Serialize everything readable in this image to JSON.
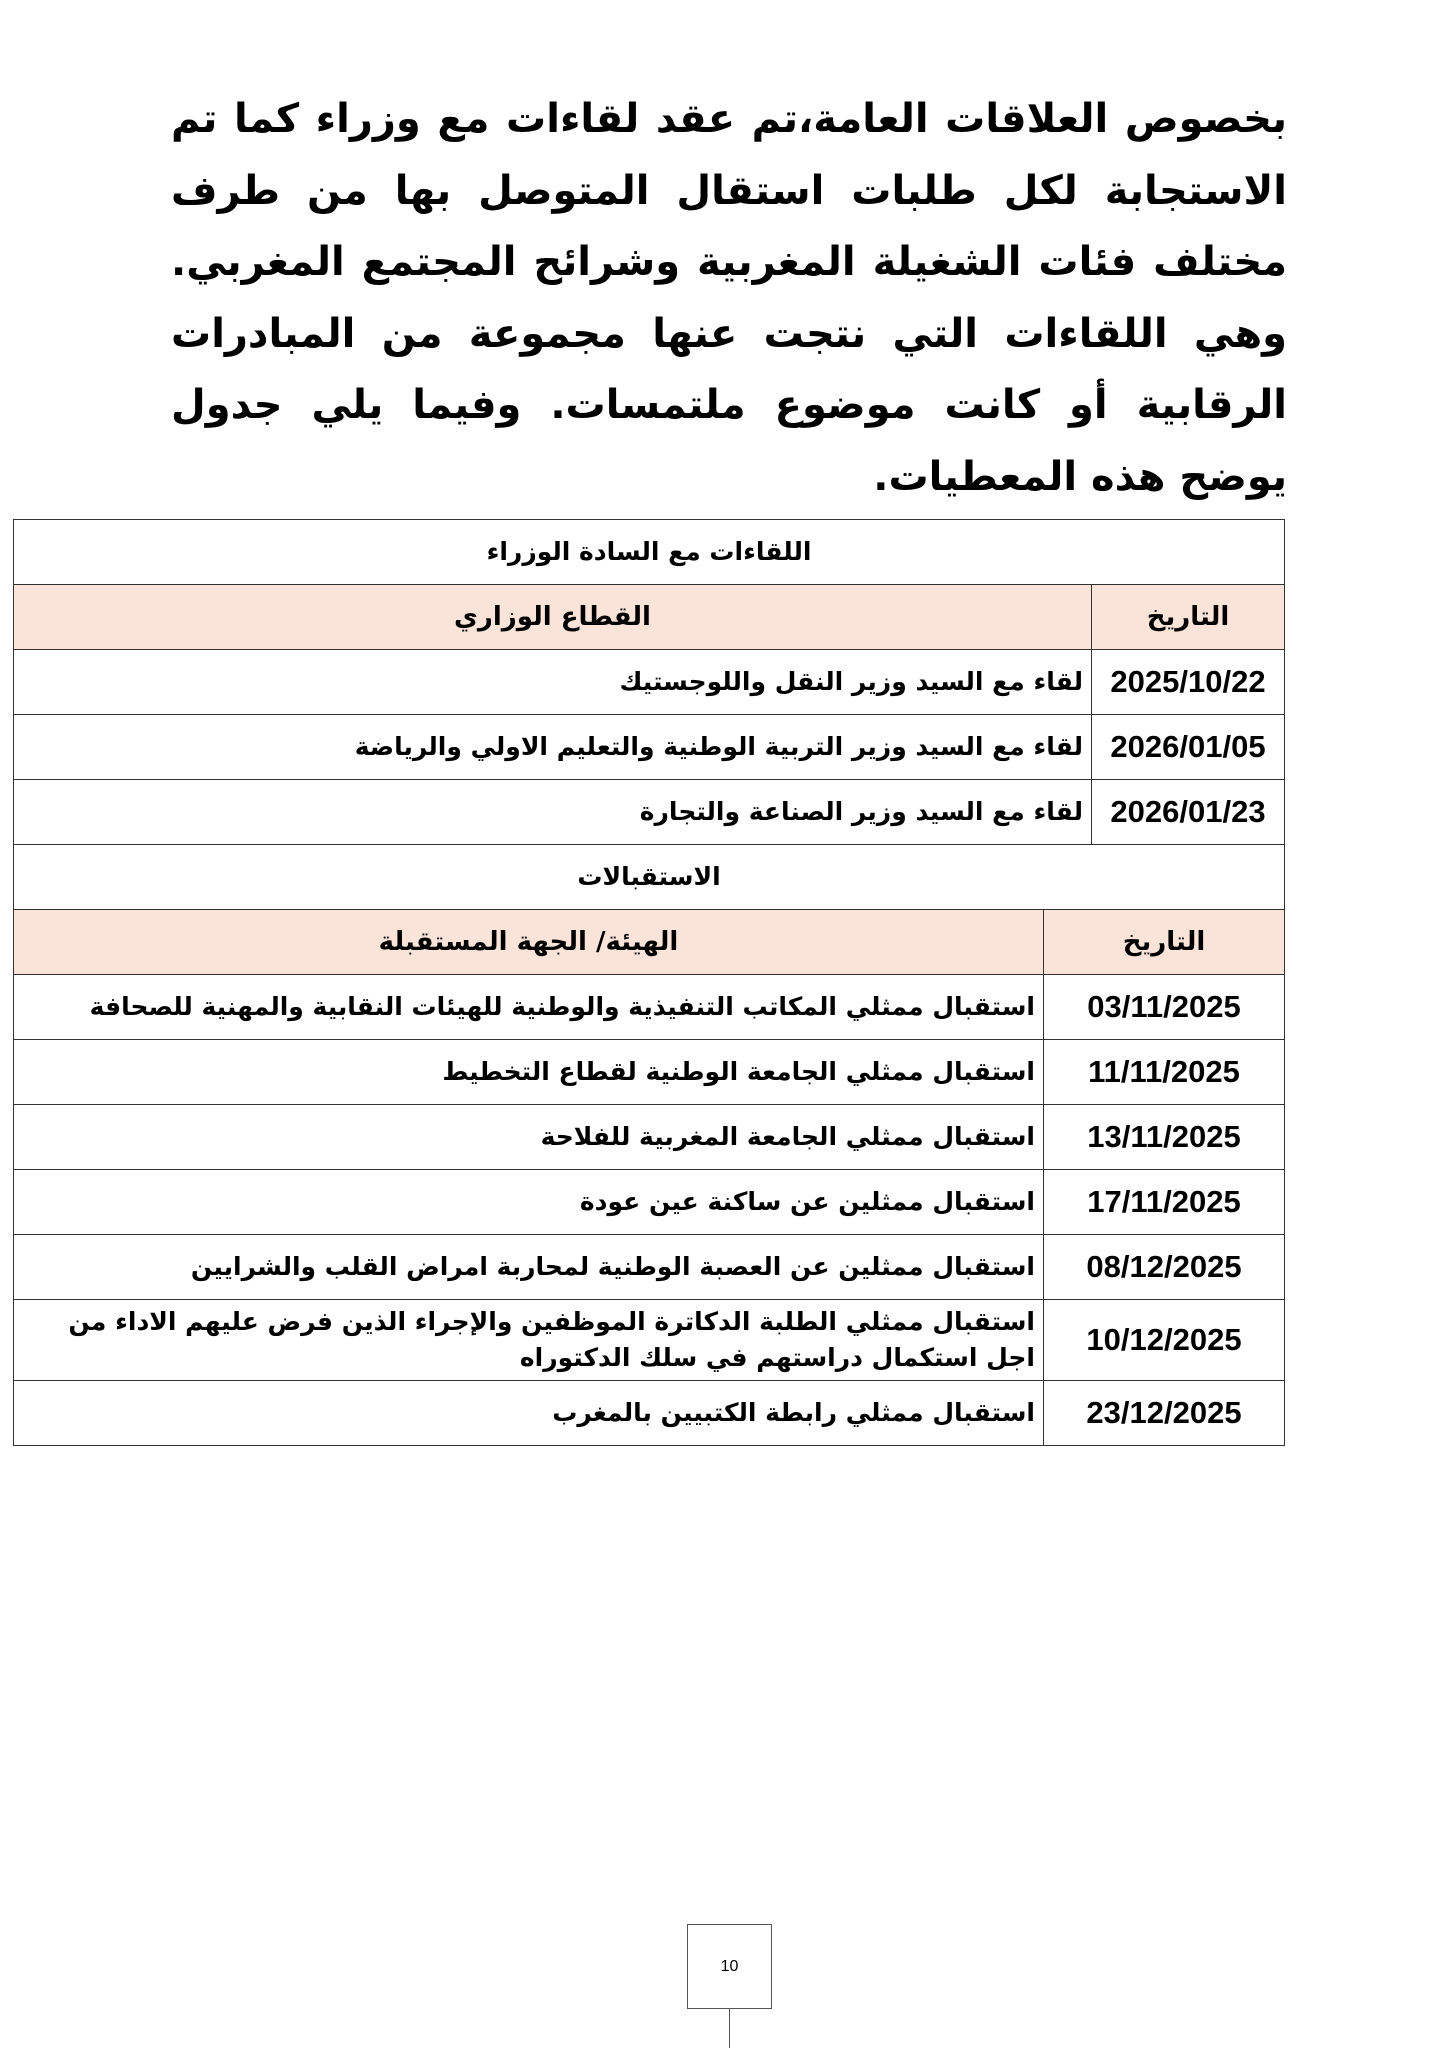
{
  "paragraph": "بخصوص العلاقات العامة،تم عقد لقاءات مع وزراء كما تم الاستجابة لكل طلبات استقال المتوصل بها من طرف مختلف فئات الشغيلة المغربية وشرائح المجتمع المغربي. وهي اللقاءات التي نتجت عنها مجموعة من المبادرات الرقابية أو كانت موضوع ملتمسات. وفيما يلي جدول يوضح هذه المعطيات.",
  "ministers_table": {
    "title": "اللقاءات مع السادة الوزراء",
    "headers": {
      "date": "التاريخ",
      "sector": "القطاع الوزاري"
    },
    "rows": [
      {
        "date": "2025/10/22",
        "text": "لقاء مع السيد وزير النقل واللوجستيك"
      },
      {
        "date": "2026/01/05",
        "text": "لقاء مع السيد وزير التربية الوطنية والتعليم الاولي  والرياضة"
      },
      {
        "date": "2026/01/23",
        "text": "لقاء مع السيد  وزير الصناعة والتجارة"
      }
    ]
  },
  "receptions_table": {
    "title": "الاستقبالات",
    "headers": {
      "date": "التاريخ",
      "body": "الهيئة/ الجهة المستقبلة"
    },
    "rows": [
      {
        "date": "03/11/2025",
        "text": "استقبال ممثلي المكاتب التنفيذية والوطنية للهيئات النقابية والمهنية للصحافة"
      },
      {
        "date": "11/11/2025",
        "text": "استقبال ممثلي الجامعة الوطنية لقطاع التخطيط"
      },
      {
        "date": "13/11/2025",
        "text": "استقبال ممثلي الجامعة المغربية للفلاحة"
      },
      {
        "date": "17/11/2025",
        "text": "استقبال ممثلين عن ساكنة عين عودة"
      },
      {
        "date": "08/12/2025",
        "text": "استقبال ممثلين عن العصبة الوطنية لمحاربة امراض القلب والشرايين"
      },
      {
        "date": "10/12/2025",
        "text": "استقبال ممثلي الطلبة الدكاترة الموظفين والإجراء الذين فرض عليهم الاداء من اجل استكمال دراستهم في سلك الدكتوراه"
      },
      {
        "date": "23/12/2025",
        "text": "استقبال ممثلي رابطة الكتبيين بالمغرب"
      }
    ]
  },
  "page_number": "10",
  "colors": {
    "header_bg": "#fae3d9"
  }
}
